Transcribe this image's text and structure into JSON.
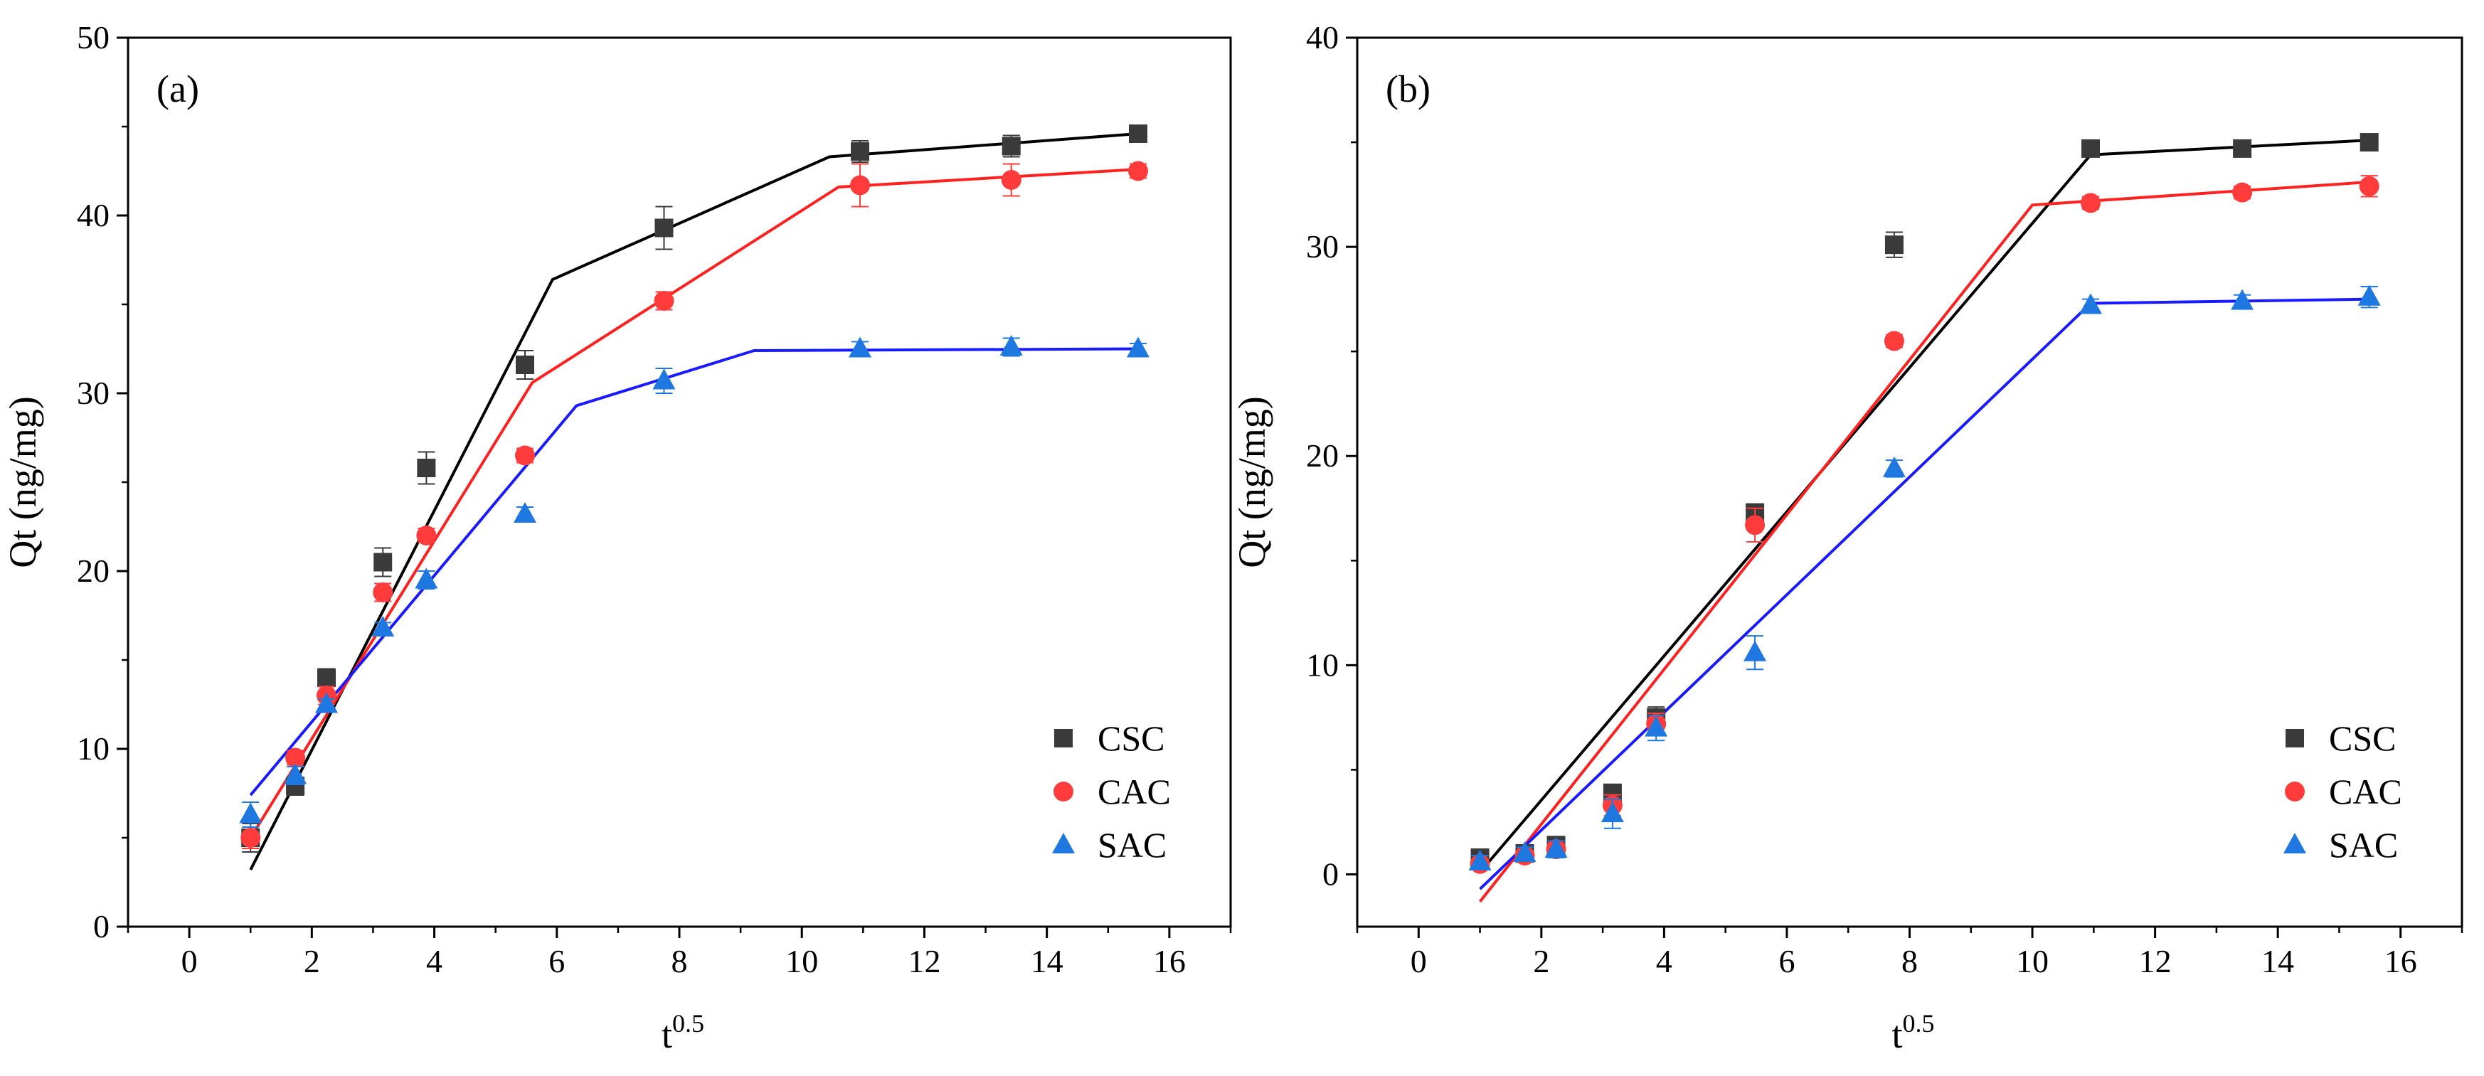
{
  "chart_data": [
    {
      "type": "scatter",
      "panel_label": "(a)",
      "xlabel_base": "t",
      "xlabel_sup": "0.5",
      "ylabel": "Qt (ng/mg)",
      "xlim": [
        -1,
        17
      ],
      "ylim": [
        0,
        50
      ],
      "xticks": [
        "0",
        "2",
        "4",
        "6",
        "8",
        "10",
        "12",
        "14",
        "16"
      ],
      "xtick_values": [
        0,
        2,
        4,
        6,
        8,
        10,
        12,
        14,
        16
      ],
      "yticks": [
        "0",
        "10",
        "20",
        "30",
        "40",
        "50"
      ],
      "ytick_values": [
        0,
        10,
        20,
        30,
        40,
        50
      ],
      "legend_position": "bottom-right",
      "x": [
        1,
        1.73,
        2.24,
        3.16,
        3.87,
        5.48,
        7.75,
        10.95,
        13.42,
        15.49
      ],
      "series": [
        {
          "name": "CSC",
          "color": "#3a3a3a",
          "fit_color": "#000000",
          "marker": "square",
          "values": [
            5.0,
            7.9,
            14.0,
            20.5,
            25.8,
            31.6,
            39.3,
            43.6,
            43.9,
            44.6
          ],
          "errors": [
            0.8,
            0.5,
            0.5,
            0.8,
            0.9,
            0.8,
            1.2,
            0.6,
            0.6,
            0.3
          ],
          "fit_x": [
            1,
            5.93,
            10.45,
            15.49
          ],
          "fit_y": [
            3.2,
            36.4,
            43.3,
            44.6
          ]
        },
        {
          "name": "CAC",
          "color": "#ff3b3b",
          "fit_color": "#ff2020",
          "marker": "circle",
          "values": [
            5.0,
            9.5,
            13.0,
            18.8,
            22.0,
            26.5,
            35.2,
            41.7,
            42.0,
            42.5
          ],
          "errors": [
            0.6,
            0.4,
            0.5,
            0.5,
            0.4,
            0.4,
            0.5,
            1.2,
            0.9,
            0.4
          ],
          "fit_x": [
            1,
            5.6,
            10.6,
            15.49
          ],
          "fit_y": [
            5.0,
            30.6,
            41.6,
            42.6
          ]
        },
        {
          "name": "SAC",
          "color": "#1f77e0",
          "fit_color": "#1a1aff",
          "marker": "triangle",
          "values": [
            6.3,
            8.5,
            12.5,
            16.8,
            19.5,
            23.2,
            30.7,
            32.5,
            32.6,
            32.5
          ],
          "errors": [
            0.7,
            0.5,
            0.3,
            0.3,
            0.5,
            0.4,
            0.7,
            0.4,
            0.5,
            0.3
          ],
          "fit_x": [
            1,
            6.32,
            9.22,
            15.49
          ],
          "fit_y": [
            7.4,
            29.3,
            32.4,
            32.5
          ]
        }
      ]
    },
    {
      "type": "scatter",
      "panel_label": "(b)",
      "xlabel_base": "t",
      "xlabel_sup": "0.5",
      "ylabel": "Qt (ng/mg)",
      "xlim": [
        -1,
        17
      ],
      "ylim": [
        -2.5,
        40
      ],
      "xticks": [
        "0",
        "2",
        "4",
        "6",
        "8",
        "10",
        "12",
        "14",
        "16"
      ],
      "xtick_values": [
        0,
        2,
        4,
        6,
        8,
        10,
        12,
        14,
        16
      ],
      "yticks": [
        "0",
        "10",
        "20",
        "30",
        "40"
      ],
      "ytick_values": [
        0,
        10,
        20,
        30,
        40
      ],
      "legend_position": "bottom-right",
      "x": [
        1,
        1.73,
        2.24,
        3.16,
        3.87,
        5.48,
        7.75,
        10.95,
        13.42,
        15.49
      ],
      "series": [
        {
          "name": "CSC",
          "color": "#3a3a3a",
          "fit_color": "#000000",
          "marker": "square",
          "values": [
            0.8,
            1.0,
            1.4,
            3.9,
            7.5,
            17.3,
            30.1,
            34.7,
            34.7,
            35.0
          ],
          "errors": [
            0.3,
            0.3,
            0.3,
            0.4,
            0.5,
            0.4,
            0.6,
            0.3,
            0.3,
            0.3
          ],
          "fit_x": [
            1,
            10.95,
            15.49
          ],
          "fit_y": [
            0.1,
            34.4,
            35.1
          ]
        },
        {
          "name": "CAC",
          "color": "#ff3b3b",
          "fit_color": "#ff2020",
          "marker": "circle",
          "values": [
            0.5,
            0.9,
            1.2,
            3.3,
            7.2,
            16.7,
            25.5,
            32.1,
            32.6,
            32.9
          ],
          "errors": [
            0.2,
            0.2,
            0.3,
            0.5,
            0.5,
            0.8,
            0.3,
            0.3,
            0.3,
            0.5
          ],
          "fit_x": [
            1,
            10.0,
            15.49
          ],
          "fit_y": [
            -1.3,
            32.0,
            33.1
          ]
        },
        {
          "name": "SAC",
          "color": "#1f77e0",
          "fit_color": "#1a1aff",
          "marker": "triangle",
          "values": [
            0.6,
            1.0,
            1.2,
            2.9,
            7.0,
            10.6,
            19.4,
            27.2,
            27.4,
            27.6
          ],
          "errors": [
            0.3,
            0.3,
            0.4,
            0.7,
            0.6,
            0.8,
            0.4,
            0.3,
            0.3,
            0.5
          ],
          "fit_x": [
            1,
            10.95,
            15.49
          ],
          "fit_y": [
            -0.7,
            27.3,
            27.5
          ]
        }
      ]
    }
  ]
}
